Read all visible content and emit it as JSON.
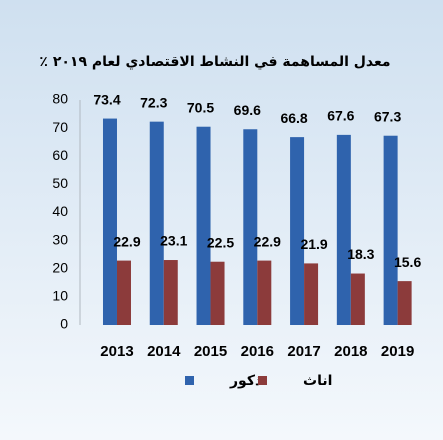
{
  "chart_data": {
    "type": "bar",
    "title": "معدل المساهمة في النشاط الاقتصادي لعام ٢٠١٩ ٪",
    "categories": [
      "2013",
      "2014",
      "2015",
      "2016",
      "2017",
      "2018",
      "2019"
    ],
    "series": [
      {
        "name": "ذكور",
        "color": "#2f63ad",
        "values": [
          73.4,
          72.3,
          70.5,
          69.6,
          66.8,
          67.6,
          67.3
        ]
      },
      {
        "name": "اناث",
        "color": "#8c3b3b",
        "values": [
          22.9,
          23.1,
          22.5,
          22.9,
          21.9,
          18.3,
          15.6
        ]
      }
    ],
    "ylim": [
      0,
      80
    ],
    "yticks": [
      0,
      10,
      20,
      30,
      40,
      50,
      60,
      70,
      80
    ],
    "grid": false
  }
}
